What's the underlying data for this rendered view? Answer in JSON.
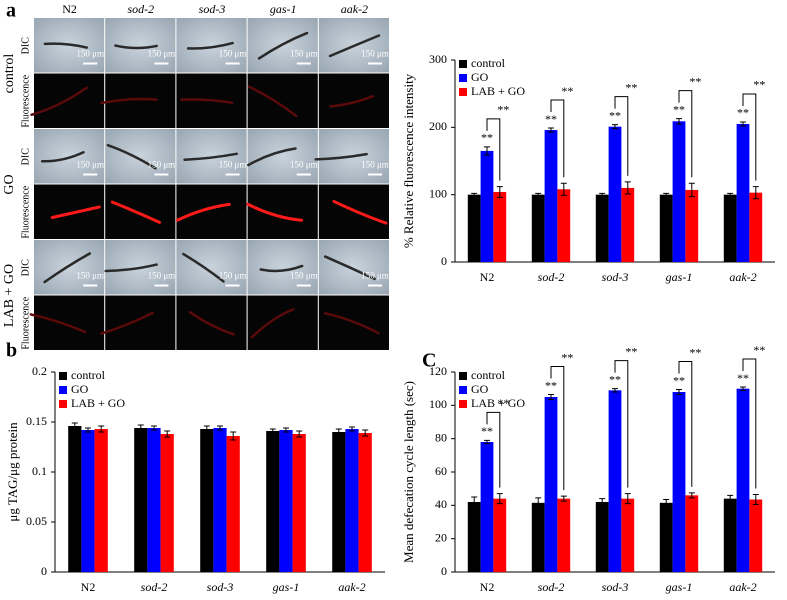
{
  "micrographs": {
    "label": "a",
    "channels": [
      "DIC",
      "Fluorescence"
    ],
    "scale_bar": "150 μm"
  },
  "chart_data": [
    {
      "type": "bar",
      "ylabel": "% Relative fluorescence intensity",
      "categories": [
        "N2",
        "sod-2",
        "sod-3",
        "gas-1",
        "aak-2"
      ],
      "series": [
        {
          "name": "control",
          "color": "#000000",
          "values": [
            100,
            100,
            100,
            100,
            100
          ],
          "errors": [
            2,
            2,
            2,
            2,
            2
          ]
        },
        {
          "name": "GO",
          "color": "#0000ff",
          "values": [
            165,
            196,
            201,
            209,
            205
          ],
          "errors": [
            6,
            3,
            3,
            4,
            3
          ]
        },
        {
          "name": "LAB + GO",
          "color": "#ff0000",
          "values": [
            104,
            108,
            110,
            107,
            103
          ],
          "errors": [
            8,
            9,
            9,
            10,
            9
          ]
        }
      ],
      "ylim": [
        0,
        300
      ],
      "yticks": [
        0,
        100,
        200,
        300
      ],
      "legend": "top-left",
      "significance": "**"
    },
    {
      "type": "bar",
      "panel": "b",
      "ylabel": "μg TAG/μg protein",
      "categories": [
        "N2",
        "sod-2",
        "sod-3",
        "gas-1",
        "aak-2"
      ],
      "series": [
        {
          "name": "control",
          "color": "#000000",
          "values": [
            0.146,
            0.144,
            0.143,
            0.141,
            0.14
          ],
          "errors": [
            0.003,
            0.003,
            0.003,
            0.002,
            0.003
          ]
        },
        {
          "name": "GO",
          "color": "#0000ff",
          "values": [
            0.142,
            0.144,
            0.144,
            0.142,
            0.143
          ],
          "errors": [
            0.002,
            0.002,
            0.002,
            0.002,
            0.002
          ]
        },
        {
          "name": "LAB + GO",
          "color": "#ff0000",
          "values": [
            0.143,
            0.138,
            0.136,
            0.138,
            0.139
          ],
          "errors": [
            0.003,
            0.003,
            0.004,
            0.003,
            0.003
          ]
        }
      ],
      "ylim": [
        0,
        0.2
      ],
      "yticks": [
        0,
        0.05,
        0.1,
        0.15,
        0.2
      ],
      "legend": "top-left"
    },
    {
      "type": "bar",
      "panel": "C",
      "ylabel": "Mean defecation cycle length (sec)",
      "categories": [
        "N2",
        "sod-2",
        "sod-3",
        "gas-1",
        "aak-2"
      ],
      "series": [
        {
          "name": "control",
          "color": "#000000",
          "values": [
            42,
            41.5,
            42,
            41.5,
            44
          ],
          "errors": [
            3,
            3,
            2,
            2,
            2
          ]
        },
        {
          "name": "GO",
          "color": "#0000ff",
          "values": [
            78,
            105,
            109,
            108,
            110
          ],
          "errors": [
            1,
            1.5,
            1,
            1.5,
            1
          ]
        },
        {
          "name": "LAB + GO",
          "color": "#ff0000",
          "values": [
            44,
            44,
            44,
            46,
            43.5
          ],
          "errors": [
            3,
            1.5,
            3,
            1.5,
            3
          ]
        }
      ],
      "ylim": [
        0,
        120
      ],
      "yticks": [
        0,
        20,
        40,
        60,
        80,
        100,
        120
      ],
      "legend": "top-left",
      "significance": "**"
    }
  ]
}
